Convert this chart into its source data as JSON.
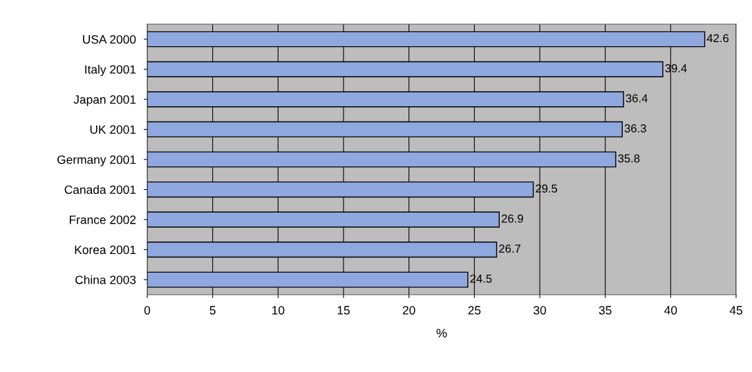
{
  "chart_data": {
    "type": "bar",
    "orientation": "horizontal",
    "xlabel": "%",
    "categories": [
      "USA 2000",
      "Italy 2001",
      "Japan 2001",
      "UK 2001",
      "Germany 2001",
      "Canada 2001",
      "France 2002",
      "Korea 2001",
      "China 2003"
    ],
    "values": [
      42.6,
      39.4,
      36.4,
      36.3,
      35.8,
      29.5,
      26.9,
      26.7,
      24.5
    ],
    "color": "#8fa8e0",
    "data_labels": true,
    "grid": "x",
    "xlim": [
      0,
      45
    ],
    "xticks": [
      0,
      5,
      10,
      15,
      20,
      25,
      30,
      35,
      40,
      45
    ]
  }
}
